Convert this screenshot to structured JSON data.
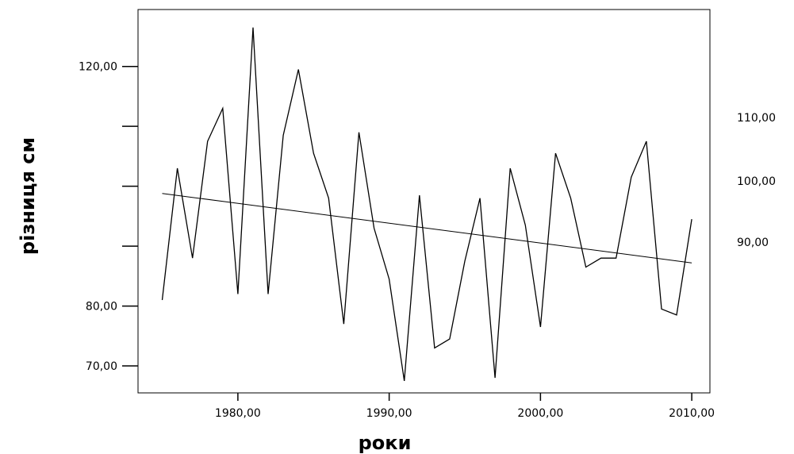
{
  "chart_data": {
    "type": "line",
    "xlabel": "роки",
    "ylabel": "різниця см",
    "xlim": [
      1973.4,
      2011.2
    ],
    "ylim": [
      65.5,
      129.5
    ],
    "x_ticks": [
      {
        "value": 1980,
        "label": "1980,00"
      },
      {
        "value": 1990,
        "label": "1990,00"
      },
      {
        "value": 2000,
        "label": "2000,00"
      },
      {
        "value": 2010,
        "label": "2010,00"
      }
    ],
    "y_ticks": [
      {
        "value": 70,
        "label": "70,00"
      },
      {
        "value": 80,
        "label": "80,00"
      },
      {
        "value": 90,
        "label": ""
      },
      {
        "value": 100,
        "label": ""
      },
      {
        "value": 110,
        "label": ""
      },
      {
        "value": 120,
        "label": "120,00"
      }
    ],
    "extra_labels": [
      "110,00",
      "100,00",
      "90,00"
    ],
    "grid": false,
    "series": [
      {
        "x": [
          1975,
          1976,
          1977,
          1978,
          1979,
          1980,
          1981,
          1982,
          1983,
          1984,
          1985,
          1986,
          1987,
          1988,
          1989,
          1990,
          1991,
          1992,
          1993,
          1994,
          1995,
          1996,
          1997,
          1998,
          1999,
          2000,
          2001,
          2002,
          2003,
          2004,
          2005,
          2006,
          2007,
          2008,
          2009,
          2010
        ],
        "values": [
          81.0,
          103.0,
          88.0,
          107.5,
          113.0,
          82.0,
          126.5,
          82.0,
          108.5,
          119.5,
          105.5,
          98.0,
          77.0,
          109.0,
          93.0,
          84.5,
          67.5,
          98.5,
          73.0,
          74.5,
          87.5,
          98.0,
          68.0,
          103.0,
          93.5,
          76.5,
          105.5,
          98.0,
          86.5,
          88.0,
          88.0,
          101.5,
          107.5,
          79.5,
          78.5,
          94.5
        ]
      },
      {
        "x": [
          1975,
          2010
        ],
        "values": [
          98.8,
          87.2
        ]
      }
    ]
  }
}
